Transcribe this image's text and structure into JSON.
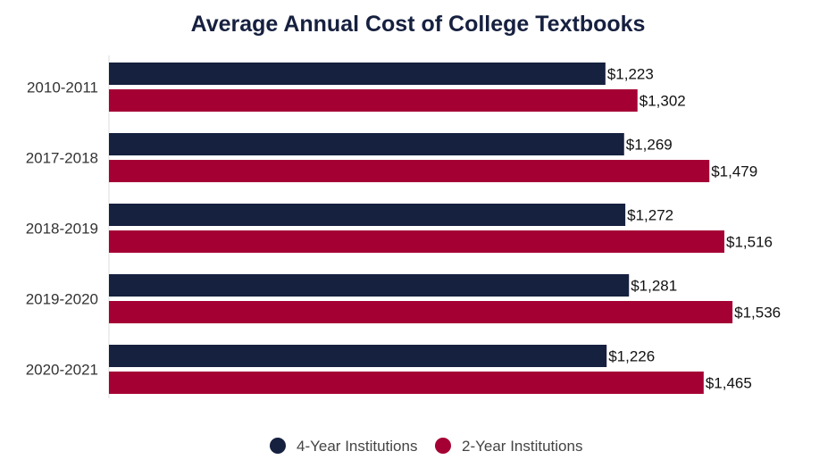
{
  "chart_data": {
    "type": "bar",
    "orientation": "horizontal",
    "title": "Average Annual Cost of College Textbooks",
    "categories": [
      "2010-2011",
      "2017-2018",
      "2018-2019",
      "2019-2020",
      "2020-2021"
    ],
    "series": [
      {
        "name": "4-Year Institutions",
        "color": "#16203f",
        "values": [
          1223,
          1269,
          1272,
          1281,
          1226
        ],
        "labels": [
          "$1,223",
          "$1,269",
          "$1,272",
          "$1,281",
          "$1,226"
        ]
      },
      {
        "name": "2-Year Institutions",
        "color": "#a50034",
        "values": [
          1302,
          1479,
          1516,
          1536,
          1465
        ],
        "labels": [
          "$1,302",
          "$1,479",
          "$1,516",
          "$1,536",
          "$1,465"
        ]
      }
    ],
    "xlim": [
      0,
      1760
    ],
    "grid": false,
    "legend_position": "bottom-center"
  }
}
